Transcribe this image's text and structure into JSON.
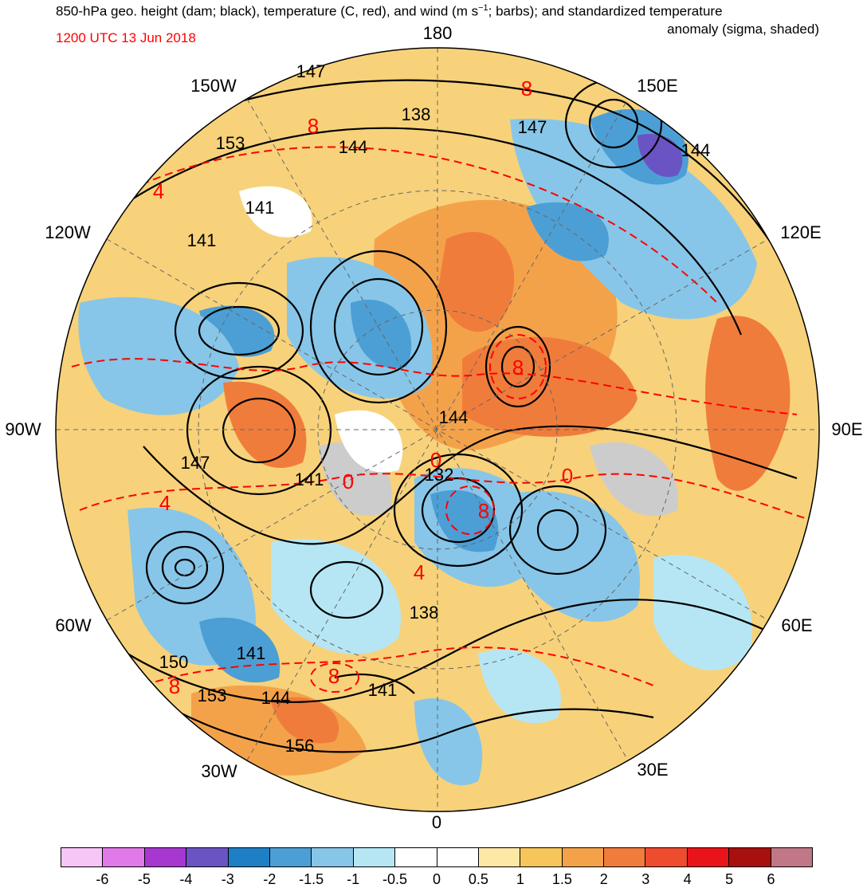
{
  "header": {
    "title_line1": "850-hPa geo. height (dam; black), temperature (C, red), and wind (m s",
    "title_sup": "−1",
    "title_line1_tail": "; barbs); and standardized temperature",
    "title_line2": "anomaly (sigma, shaded)",
    "date": "1200 UTC 13 Jun 2018"
  },
  "longitude_labels": [
    {
      "id": "lon-180",
      "text": "180"
    },
    {
      "id": "lon-150e",
      "text": "150E"
    },
    {
      "id": "lon-120e",
      "text": "120E"
    },
    {
      "id": "lon-90e",
      "text": "90E"
    },
    {
      "id": "lon-60e",
      "text": "60E"
    },
    {
      "id": "lon-30e",
      "text": "30E"
    },
    {
      "id": "lon-0",
      "text": "0"
    },
    {
      "id": "lon-30w",
      "text": "30W"
    },
    {
      "id": "lon-60w",
      "text": "60W"
    },
    {
      "id": "lon-90w",
      "text": "90W"
    },
    {
      "id": "lon-120w",
      "text": "120W"
    },
    {
      "id": "lon-150w",
      "text": "150W"
    }
  ],
  "height_contour_labels": [
    "147",
    "138",
    "144",
    "147",
    "144",
    "153",
    "141",
    "141",
    "147",
    "144",
    "132",
    "141",
    "138",
    "150",
    "141",
    "153",
    "144",
    "141",
    "156"
  ],
  "temperature_contour_labels": [
    "8",
    "8",
    "4",
    "8",
    "0",
    "0",
    "8",
    "0",
    "4",
    "8",
    "4",
    "8"
  ],
  "colorbar": {
    "colors": [
      "#f7c6f7",
      "#e07ae8",
      "#a638d0",
      "#6a54c3",
      "#1f7fc4",
      "#4c9fd5",
      "#87c6e8",
      "#b6e6f4",
      "#ffffff",
      "#ffffff",
      "#fde8a6",
      "#f7c65a",
      "#f4a24a",
      "#f07c3c",
      "#ee4c2e",
      "#e8141a",
      "#a80f0f",
      "#c07886"
    ],
    "tick_labels": [
      "-6",
      "-5",
      "-4",
      "-3",
      "-2",
      "-1.5",
      "-1",
      "-0.5",
      "0",
      "0.5",
      "1",
      "1.5",
      "2",
      "3",
      "4",
      "5",
      "6"
    ]
  }
}
